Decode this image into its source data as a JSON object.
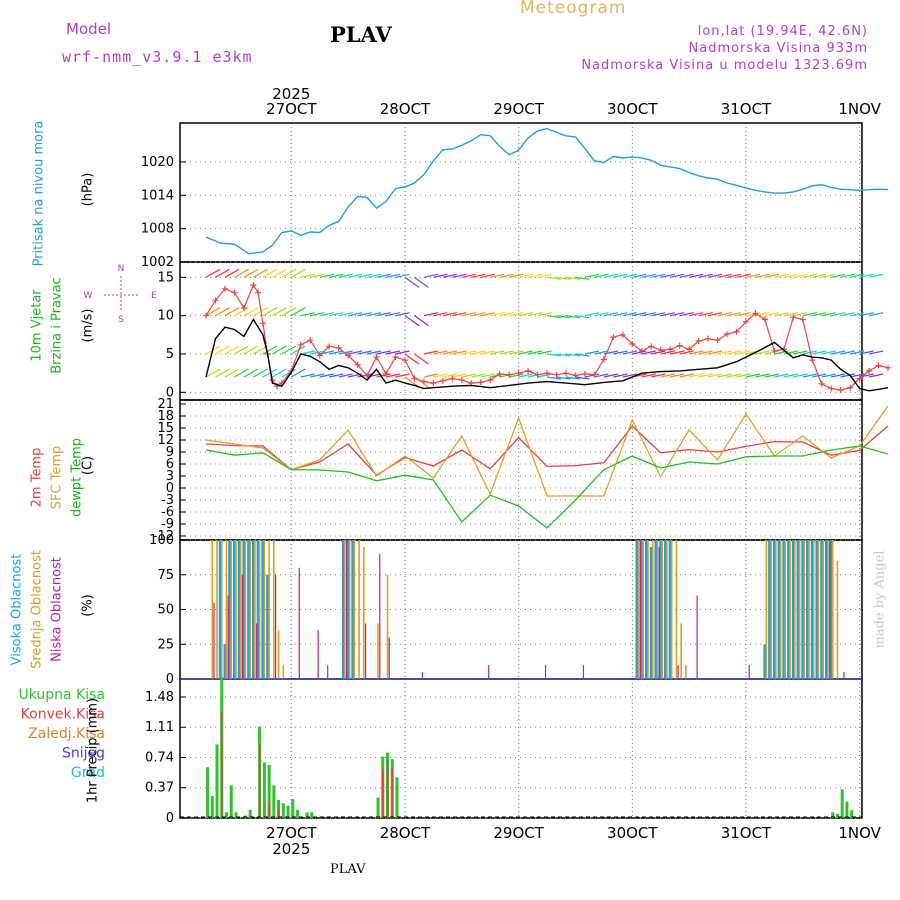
{
  "header": {
    "model_label": "Model",
    "model_name": "wrf-nmm_v3.9.1 e3km",
    "title": "PLAV",
    "meteogram": "Meteogram",
    "lonlat": "lon,lat (19.94E, 42.6N)",
    "altitude": "Nadmorska Visina 933m",
    "model_altitude": "Nadmorska Visina u modelu 1323.69m",
    "footer_station": "PLAV",
    "credit": "made by Angel"
  },
  "dates": {
    "year": "2025",
    "labels": [
      "27OCT",
      "28OCT",
      "29OCT",
      "30OCT",
      "31OCT",
      "1NOV"
    ]
  },
  "colors": {
    "pressure": "#1e9fe0",
    "temp2m": "#e84040",
    "sfc": "#e0a030",
    "dewpt": "#20c020",
    "low_cloud": "#c02090",
    "mid_cloud": "#d8a028",
    "high_cloud": "#20a0e0",
    "precip": "#30c030",
    "conv": "#e04040",
    "wind_speed": "#ee4444",
    "wind_dir": "#000000"
  },
  "panels": {
    "pressure": {
      "label": "Pritisak na nivou mora",
      "unit": "(hPa)"
    },
    "wind": {
      "label1": "10m Vjetar",
      "label2": "Brzina i Pravac",
      "unit": "(m/s)",
      "compass": {
        "n": "N",
        "s": "S",
        "w": "W",
        "e": "E"
      }
    },
    "temp": {
      "label1": "2m Temp",
      "label2": "SFC Temp",
      "label3": "dewpt Temp",
      "unit": "(C)"
    },
    "cloud": {
      "label1": "Visoka Oblacnost",
      "label2": "Srednja Oblacnost",
      "label3": "Niska Oblacnost",
      "unit": "(%)"
    },
    "precip": {
      "unit": "1hr Precip (mm)",
      "legend": [
        "Ukupna Kisa",
        "Konvek.Kisa",
        "Zaledj.Kisa",
        "Snijeg",
        "Grad"
      ]
    }
  },
  "chart_data": [
    {
      "type": "line",
      "title": "Pritisak na nivou mora",
      "ylabel": "(hPa)",
      "ylim": [
        1002,
        1027
      ],
      "yticks": [
        "1002",
        "1008",
        "1014",
        "1020"
      ],
      "xlim_hours": [
        0,
        144
      ],
      "series": [
        {
          "name": "Pressure",
          "color": "#1e9fe0",
          "x": [
            0,
            3,
            6,
            9,
            12,
            14,
            16,
            18,
            20,
            22,
            24,
            26,
            28,
            30,
            32,
            34,
            36,
            38,
            40,
            42,
            44,
            46,
            48,
            50,
            52,
            54,
            56,
            58,
            60,
            62,
            64,
            66,
            68,
            70,
            72,
            74,
            76,
            78,
            80,
            82,
            84,
            86,
            88,
            90,
            92,
            94,
            96,
            98,
            100,
            102,
            104,
            106,
            108,
            110,
            112,
            114,
            116,
            118,
            120,
            122,
            124,
            126,
            128,
            130,
            132,
            134,
            136,
            138,
            140,
            142,
            144
          ],
          "values": [
            1006.5,
            1005.4,
            1005.2,
            1003.5,
            1003.8,
            1005,
            1007.3,
            1007.6,
            1006.8,
            1007.4,
            1007.3,
            1008.6,
            1009.3,
            1011.9,
            1013.8,
            1013.6,
            1011.7,
            1012.9,
            1015.2,
            1015.5,
            1016.2,
            1017.7,
            1020.2,
            1022.2,
            1022.3,
            1023.0,
            1023.8,
            1024.9,
            1024.7,
            1022.8,
            1021.3,
            1022.1,
            1024.3,
            1025.6,
            1026.0,
            1025.3,
            1024.7,
            1024.5,
            1022.4,
            1020.2,
            1019.9,
            1021.0,
            1020.7,
            1020.9,
            1020.7,
            1020.3,
            1019.4,
            1019.1,
            1018.8,
            1018.1,
            1017.5,
            1017.1,
            1016.9,
            1016.2,
            1015.8,
            1015.3,
            1014.9,
            1014.6,
            1014.4,
            1014.4,
            1014.6,
            1015.1,
            1015.7,
            1015.9,
            1015.4,
            1015.1,
            1015.0,
            1014.9,
            1015.0,
            1015.1,
            1015.0
          ]
        }
      ]
    },
    {
      "type": "line",
      "title": "10m Vjetar Brzina i Pravac",
      "ylabel": "(m/s)",
      "ylim": [
        -1,
        17
      ],
      "yticks": [
        "0",
        "5",
        "10",
        "15"
      ],
      "series": [
        {
          "name": "Wind speed",
          "color": "#ee4444",
          "x": [
            0,
            2,
            4,
            6,
            8,
            10,
            11,
            12,
            13,
            14,
            15,
            16,
            18,
            20,
            22,
            24,
            26,
            28,
            30,
            32,
            34,
            36,
            38,
            40,
            42,
            44,
            46,
            48,
            50,
            52,
            54,
            56,
            58,
            60,
            62,
            64,
            66,
            68,
            70,
            72,
            74,
            76,
            78,
            80,
            82,
            84,
            86,
            88,
            90,
            92,
            94,
            96,
            98,
            100,
            102,
            104,
            106,
            108,
            110,
            112,
            114,
            116,
            118,
            120,
            122,
            124,
            126,
            128,
            130,
            132,
            134,
            136,
            138,
            140,
            142,
            144
          ],
          "values": [
            10,
            12,
            13.5,
            13,
            11,
            14,
            13,
            9,
            5,
            1.6,
            0.8,
            1.2,
            2.8,
            6.2,
            6.8,
            4.8,
            6,
            5.8,
            4.8,
            3.6,
            2.2,
            4.6,
            2.4,
            4.6,
            4.2,
            1.8,
            1.4,
            1.2,
            1.5,
            1.8,
            1.6,
            1.2,
            1.3,
            1.6,
            2.4,
            2.3,
            2.5,
            2.8,
            2.3,
            2.5,
            2.3,
            2.5,
            2.2,
            2.4,
            2.3,
            4.3,
            7.2,
            7.5,
            6.3,
            5.4,
            6,
            5.5,
            5.6,
            6.1,
            5.6,
            6.7,
            7,
            6.8,
            7.6,
            7.9,
            9.2,
            10.3,
            9.5,
            5.4,
            5.6,
            9.8,
            9.5,
            4.2,
            1.1,
            0.5,
            0.3,
            0.6,
            1.8,
            2.8,
            3.5,
            3.2
          ]
        },
        {
          "name": "Wind direction",
          "color": "#000000",
          "x": [
            0,
            2,
            4,
            6,
            8,
            10,
            12,
            13,
            14,
            16,
            18,
            20,
            22,
            24,
            26,
            28,
            30,
            32,
            34,
            36,
            38,
            40,
            42,
            44,
            46,
            48,
            52,
            56,
            60,
            64,
            68,
            72,
            76,
            80,
            84,
            88,
            92,
            96,
            100,
            104,
            108,
            112,
            116,
            120,
            124,
            126,
            128,
            130,
            132,
            134,
            136,
            138,
            140,
            142,
            144
          ],
          "values": [
            2,
            7,
            8.5,
            8.2,
            7.3,
            9.5,
            7.5,
            5,
            1.2,
            0.8,
            2.6,
            5,
            4.7,
            4,
            3,
            3.5,
            3.2,
            2.5,
            1.6,
            3,
            1.2,
            1.6,
            1.2,
            0.9,
            0.5,
            0.6,
            0.8,
            0.9,
            0.6,
            0.9,
            1.2,
            1.4,
            1.2,
            1.0,
            1.3,
            1.5,
            2.5,
            2.7,
            2.8,
            3.0,
            3.2,
            4.0,
            5.2,
            6.5,
            4.5,
            4.9,
            4.6,
            4.5,
            4.2,
            3.0,
            2.2,
            0.5,
            0.2,
            0.4,
            0.6
          ]
        }
      ]
    },
    {
      "type": "line",
      "title": "2m Temp / SFC Temp / dewpt Temp",
      "ylabel": "(C)",
      "ylim": [
        -13,
        22
      ],
      "yticks": [
        "-12",
        "-9",
        "-6",
        "-3",
        "0",
        "3",
        "6",
        "9",
        "12",
        "15",
        "18",
        "21"
      ],
      "series": [
        {
          "name": "2m Temp",
          "color": "#e84040",
          "x": [
            0,
            6,
            12,
            18,
            24,
            30,
            36,
            42,
            48,
            54,
            60,
            66,
            72,
            78,
            84,
            90,
            96,
            102,
            108,
            114,
            120,
            126,
            132,
            138,
            144
          ],
          "values": [
            11,
            10.6,
            10.5,
            4.6,
            6.5,
            11,
            3.2,
            7.6,
            5.5,
            9.5,
            4.8,
            12.6,
            5.4,
            5.6,
            6.3,
            15.5,
            8.8,
            9.6,
            9,
            10.4,
            11.6,
            11.5,
            8.2,
            9.4,
            15.5
          ]
        },
        {
          "name": "SFC Temp",
          "color": "#e0a030",
          "x": [
            0,
            6,
            12,
            18,
            24,
            30,
            36,
            42,
            48,
            54,
            60,
            66,
            72,
            78,
            84,
            90,
            96,
            102,
            108,
            114,
            120,
            126,
            132,
            138,
            144
          ],
          "values": [
            12,
            11,
            10,
            4.6,
            7,
            14.5,
            3,
            8,
            2.5,
            13,
            -1.5,
            17.5,
            -2,
            -2,
            -2,
            17,
            2.8,
            14.5,
            7,
            18.5,
            8,
            13,
            7.5,
            10.5,
            20.5
          ]
        },
        {
          "name": "dewpt Temp",
          "color": "#20c020",
          "x": [
            0,
            6,
            12,
            18,
            24,
            30,
            36,
            42,
            48,
            54,
            60,
            66,
            72,
            78,
            84,
            90,
            96,
            102,
            108,
            114,
            120,
            126,
            132,
            138,
            144
          ],
          "values": [
            9.5,
            8.2,
            8.8,
            4.6,
            4.5,
            4,
            1.8,
            3.2,
            2,
            -8.5,
            -1.8,
            -4.5,
            -10,
            -3,
            4.6,
            8,
            5,
            6.5,
            6,
            7.8,
            8,
            8,
            9.5,
            10.5,
            8.5
          ]
        }
      ]
    },
    {
      "type": "bar",
      "title": "Oblacnost",
      "ylabel": "(%)",
      "ylim": [
        0,
        100
      ],
      "yticks": [
        "0",
        "25",
        "50",
        "75",
        "100"
      ],
      "series": [
        {
          "name": "Visoka Oblacnost",
          "color": "#20a0e0",
          "x": [
            3,
            4,
            5,
            6,
            7,
            8,
            9,
            10,
            11,
            12,
            13,
            29,
            30,
            31,
            91,
            92,
            93,
            94,
            95,
            96,
            97,
            98,
            118,
            119,
            120,
            121,
            122,
            123,
            124,
            125,
            126,
            127,
            128,
            129,
            130,
            131,
            132
          ],
          "values": [
            100,
            25,
            100,
            100,
            100,
            100,
            100,
            100,
            100,
            100,
            75,
            100,
            100,
            100,
            100,
            100,
            100,
            95,
            100,
            100,
            100,
            100,
            25,
            100,
            100,
            100,
            100,
            100,
            100,
            100,
            100,
            100,
            100,
            100,
            100,
            100,
            100
          ]
        },
        {
          "name": "Srednja Oblacnost",
          "color": "#d8a028",
          "x": [
            1,
            2,
            3,
            4,
            5,
            6,
            7,
            8,
            9,
            10,
            11,
            12,
            13,
            14,
            15,
            16,
            29,
            30,
            31,
            32,
            33,
            36,
            38,
            91,
            92,
            93,
            94,
            95,
            96,
            97,
            98,
            99,
            100,
            101,
            118,
            119,
            120,
            121,
            122,
            123,
            124,
            125,
            126,
            127,
            128,
            129,
            130,
            131,
            132,
            133
          ],
          "values": [
            100,
            100,
            100,
            100,
            100,
            100,
            100,
            100,
            100,
            100,
            100,
            100,
            100,
            100,
            35,
            10,
            100,
            100,
            100,
            100,
            95,
            40,
            75,
            100,
            100,
            100,
            100,
            100,
            100,
            100,
            100,
            100,
            40,
            10,
            100,
            100,
            100,
            100,
            100,
            100,
            100,
            100,
            100,
            100,
            100,
            100,
            100,
            100,
            100,
            85
          ]
        },
        {
          "name": "Niska Oblacnost",
          "color": "#c02090",
          "x": [
            2,
            5,
            8,
            11,
            15,
            20,
            24,
            26,
            30,
            34,
            37,
            39,
            46,
            60,
            72,
            80,
            92,
            96,
            100,
            104,
            115,
            132,
            135
          ],
          "values": [
            55,
            60,
            75,
            40,
            75,
            80,
            35,
            10,
            100,
            40,
            90,
            30,
            5,
            10,
            10,
            10,
            100,
            95,
            10,
            60,
            10,
            100,
            5
          ]
        }
      ]
    },
    {
      "type": "bar",
      "title": "1hr Precip",
      "ylabel": "1hr Precip (mm)",
      "ylim": [
        0,
        1.7
      ],
      "yticks": [
        "0",
        "0.37",
        "0.74",
        "1.11",
        "1.48"
      ],
      "series": [
        {
          "name": "Ukupna Kisa",
          "color": "#30c030",
          "x": [
            0,
            1,
            2,
            3,
            4,
            5,
            6,
            8,
            9,
            11,
            12,
            13,
            14,
            15,
            16,
            17,
            18,
            19,
            21,
            22,
            36,
            37,
            38,
            39,
            40,
            132,
            133,
            134,
            135,
            136
          ],
          "values": [
            0.62,
            0.27,
            0.9,
            1.72,
            0.07,
            0.4,
            0.07,
            0.03,
            0.1,
            1.12,
            0.68,
            0.65,
            0.4,
            0.22,
            0.18,
            0.15,
            0.23,
            0.1,
            0.07,
            0.07,
            0.25,
            0.75,
            0.8,
            0.72,
            0.5,
            0.07,
            0.05,
            0.35,
            0.2,
            0.1
          ]
        },
        {
          "name": "Konvek.Kisa",
          "color": "#e04040",
          "x": [
            3,
            11,
            13,
            15,
            37,
            38,
            39
          ],
          "values": [
            1.3,
            0.9,
            0.2,
            0.1,
            0.6,
            0.7,
            0.6
          ]
        }
      ]
    }
  ]
}
